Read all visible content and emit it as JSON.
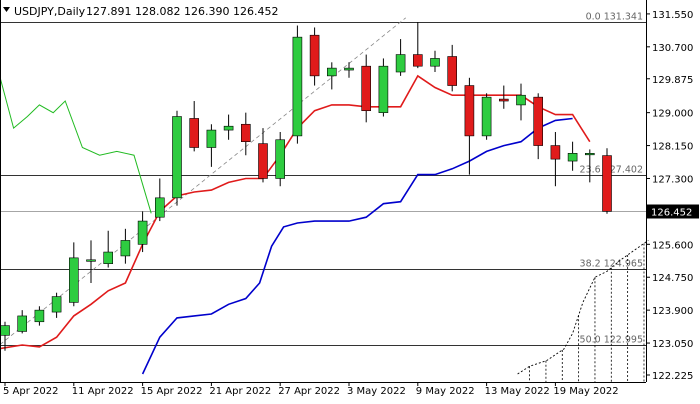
{
  "header": {
    "symbol": "USDJPY,Daily",
    "ohlc": "127.891 128.082 126.390 126.452"
  },
  "chart_data": {
    "type": "candlestick",
    "ylim": [
      122.225,
      131.6
    ],
    "grid": false,
    "colors": {
      "bull": "#2ecc40",
      "bear": "#e01b1b",
      "kijun": "#e01b1b",
      "tenkan": "#0000cc",
      "chikou": "#22bb22",
      "fib": "#333333",
      "cloud": "#000000",
      "price_tag": "#000000"
    },
    "x_ticks": [
      {
        "i": 0,
        "label": "5 Apr 2022"
      },
      {
        "i": 4,
        "label": "11 Apr 2022"
      },
      {
        "i": 8,
        "label": "15 Apr 2022"
      },
      {
        "i": 12,
        "label": "21 Apr 2022"
      },
      {
        "i": 16,
        "label": "27 Apr 2022"
      },
      {
        "i": 20,
        "label": "3 May 2022"
      },
      {
        "i": 24,
        "label": "9 May 2022"
      },
      {
        "i": 28,
        "label": "13 May 2022"
      },
      {
        "i": 32,
        "label": "19 May 2022"
      }
    ],
    "y_ticks": [
      "131.550",
      "130.700",
      "129.875",
      "129.000",
      "128.150",
      "127.300",
      "126.452",
      "125.600",
      "124.750",
      "123.900",
      "123.050",
      "122.225"
    ],
    "y_tick_values": [
      131.55,
      130.7,
      129.875,
      129.0,
      128.15,
      127.3,
      126.452,
      125.6,
      124.75,
      123.9,
      123.05,
      122.225
    ],
    "current_price": {
      "value": 126.452,
      "label": "126.452"
    },
    "fib_levels": [
      {
        "value": 131.341,
        "label": "0.0 131.341"
      },
      {
        "value": 127.402,
        "label": "23.6 127.402"
      },
      {
        "value": 124.965,
        "label": "38.2 124.965"
      },
      {
        "value": 122.995,
        "label": "50.0 122.995"
      }
    ],
    "candles": [
      {
        "o": 123.25,
        "h": 123.6,
        "l": 122.85,
        "c": 123.5
      },
      {
        "o": 123.35,
        "h": 123.9,
        "l": 123.3,
        "c": 123.75
      },
      {
        "o": 123.6,
        "h": 124.0,
        "l": 123.5,
        "c": 123.9
      },
      {
        "o": 123.85,
        "h": 124.35,
        "l": 123.7,
        "c": 124.25
      },
      {
        "o": 124.1,
        "h": 125.65,
        "l": 124.0,
        "c": 125.25
      },
      {
        "o": 125.2,
        "h": 125.7,
        "l": 124.6,
        "c": 125.2
      },
      {
        "o": 125.1,
        "h": 125.95,
        "l": 125.0,
        "c": 125.4
      },
      {
        "o": 125.3,
        "h": 126.0,
        "l": 125.1,
        "c": 125.7
      },
      {
        "o": 125.6,
        "h": 126.45,
        "l": 125.4,
        "c": 126.2
      },
      {
        "o": 126.3,
        "h": 127.3,
        "l": 126.2,
        "c": 126.8
      },
      {
        "o": 126.8,
        "h": 129.05,
        "l": 126.6,
        "c": 128.9
      },
      {
        "o": 128.85,
        "h": 129.3,
        "l": 128.0,
        "c": 128.1
      },
      {
        "o": 128.1,
        "h": 128.7,
        "l": 127.6,
        "c": 128.55
      },
      {
        "o": 128.55,
        "h": 128.95,
        "l": 128.3,
        "c": 128.65
      },
      {
        "o": 128.7,
        "h": 129.0,
        "l": 127.9,
        "c": 128.25
      },
      {
        "o": 128.2,
        "h": 128.6,
        "l": 127.2,
        "c": 127.3
      },
      {
        "o": 127.3,
        "h": 128.5,
        "l": 127.1,
        "c": 128.3
      },
      {
        "o": 128.4,
        "h": 131.25,
        "l": 128.2,
        "c": 130.95
      },
      {
        "o": 131.0,
        "h": 131.2,
        "l": 129.7,
        "c": 129.95
      },
      {
        "o": 129.95,
        "h": 130.3,
        "l": 129.6,
        "c": 130.15
      },
      {
        "o": 130.1,
        "h": 130.3,
        "l": 129.9,
        "c": 130.15
      },
      {
        "o": 130.2,
        "h": 130.5,
        "l": 128.75,
        "c": 129.05
      },
      {
        "o": 129.0,
        "h": 130.4,
        "l": 128.9,
        "c": 130.2
      },
      {
        "o": 130.05,
        "h": 130.9,
        "l": 129.95,
        "c": 130.5
      },
      {
        "o": 130.5,
        "h": 131.341,
        "l": 130.15,
        "c": 130.2
      },
      {
        "o": 130.2,
        "h": 130.6,
        "l": 130.05,
        "c": 130.4
      },
      {
        "o": 130.45,
        "h": 130.75,
        "l": 129.55,
        "c": 129.7
      },
      {
        "o": 129.7,
        "h": 129.9,
        "l": 127.4,
        "c": 128.4
      },
      {
        "o": 128.4,
        "h": 129.5,
        "l": 128.3,
        "c": 129.4
      },
      {
        "o": 129.35,
        "h": 129.7,
        "l": 129.1,
        "c": 129.3
      },
      {
        "o": 129.2,
        "h": 129.75,
        "l": 128.8,
        "c": 129.45
      },
      {
        "o": 129.4,
        "h": 129.5,
        "l": 127.8,
        "c": 128.15
      },
      {
        "o": 128.15,
        "h": 128.5,
        "l": 127.1,
        "c": 127.8
      },
      {
        "o": 127.75,
        "h": 128.25,
        "l": 127.5,
        "c": 127.95
      },
      {
        "o": 127.95,
        "h": 128.05,
        "l": 127.2,
        "c": 127.95
      },
      {
        "o": 127.891,
        "h": 128.082,
        "l": 126.39,
        "c": 126.452
      }
    ],
    "kijun": [
      {
        "i": -0.4,
        "v": 122.9
      },
      {
        "i": 1,
        "v": 123.0
      },
      {
        "i": 2,
        "v": 122.95
      },
      {
        "i": 3,
        "v": 123.2
      },
      {
        "i": 4,
        "v": 123.75
      },
      {
        "i": 5,
        "v": 124.05
      },
      {
        "i": 6,
        "v": 124.4
      },
      {
        "i": 7,
        "v": 124.6
      },
      {
        "i": 8,
        "v": 125.6
      },
      {
        "i": 9,
        "v": 126.45
      },
      {
        "i": 10,
        "v": 126.85
      },
      {
        "i": 11,
        "v": 126.95
      },
      {
        "i": 12,
        "v": 127.0
      },
      {
        "i": 13,
        "v": 127.2
      },
      {
        "i": 14,
        "v": 127.3
      },
      {
        "i": 15,
        "v": 127.3
      },
      {
        "i": 16,
        "v": 127.9
      },
      {
        "i": 17,
        "v": 128.6
      },
      {
        "i": 18,
        "v": 129.05
      },
      {
        "i": 19,
        "v": 129.2
      },
      {
        "i": 20,
        "v": 129.2
      },
      {
        "i": 21,
        "v": 129.15
      },
      {
        "i": 22,
        "v": 129.15
      },
      {
        "i": 23,
        "v": 129.15
      },
      {
        "i": 24,
        "v": 129.95
      },
      {
        "i": 25,
        "v": 129.65
      },
      {
        "i": 26,
        "v": 129.45
      },
      {
        "i": 27,
        "v": 129.45
      },
      {
        "i": 28,
        "v": 129.45
      },
      {
        "i": 29,
        "v": 129.45
      },
      {
        "i": 30,
        "v": 129.45
      },
      {
        "i": 31,
        "v": 129.15
      },
      {
        "i": 32,
        "v": 128.95
      },
      {
        "i": 33,
        "v": 128.95
      },
      {
        "i": 34,
        "v": 128.25
      }
    ],
    "tenkan": [
      {
        "i": 8,
        "v": 122.25
      },
      {
        "i": 9,
        "v": 123.2
      },
      {
        "i": 10,
        "v": 123.7
      },
      {
        "i": 11,
        "v": 123.75
      },
      {
        "i": 12,
        "v": 123.8
      },
      {
        "i": 13,
        "v": 124.05
      },
      {
        "i": 14,
        "v": 124.2
      },
      {
        "i": 14.8,
        "v": 124.6
      },
      {
        "i": 15.5,
        "v": 125.55
      },
      {
        "i": 16.2,
        "v": 126.05
      },
      {
        "i": 17,
        "v": 126.15
      },
      {
        "i": 18,
        "v": 126.2
      },
      {
        "i": 19,
        "v": 126.2
      },
      {
        "i": 20,
        "v": 126.2
      },
      {
        "i": 21,
        "v": 126.3
      },
      {
        "i": 22,
        "v": 126.65
      },
      {
        "i": 23,
        "v": 126.7
      },
      {
        "i": 24,
        "v": 127.4
      },
      {
        "i": 25,
        "v": 127.4
      },
      {
        "i": 26,
        "v": 127.55
      },
      {
        "i": 27,
        "v": 127.75
      },
      {
        "i": 28,
        "v": 128.0
      },
      {
        "i": 29,
        "v": 128.15
      },
      {
        "i": 30,
        "v": 128.25
      },
      {
        "i": 31,
        "v": 128.6
      },
      {
        "i": 32,
        "v": 128.8
      },
      {
        "i": 33,
        "v": 128.85
      }
    ],
    "chikou": [
      {
        "i": -0.4,
        "v": 130.1
      },
      {
        "i": 0.5,
        "v": 128.6
      },
      {
        "i": 1.3,
        "v": 128.9
      },
      {
        "i": 2,
        "v": 129.2
      },
      {
        "i": 2.8,
        "v": 129.0
      },
      {
        "i": 3.5,
        "v": 129.3
      },
      {
        "i": 4.5,
        "v": 128.1
      },
      {
        "i": 5.5,
        "v": 127.9
      },
      {
        "i": 6.5,
        "v": 128.0
      },
      {
        "i": 7.5,
        "v": 127.9
      },
      {
        "i": 8.5,
        "v": 126.4
      }
    ],
    "cloud_span_a": [
      {
        "i": 29.8,
        "v": 122.25
      },
      {
        "i": 30.5,
        "v": 122.45
      },
      {
        "i": 31.5,
        "v": 122.6
      },
      {
        "i": 32.5,
        "v": 122.9
      },
      {
        "i": 33,
        "v": 123.3
      },
      {
        "i": 33.6,
        "v": 124.1
      },
      {
        "i": 34.3,
        "v": 124.75
      },
      {
        "i": 35,
        "v": 124.9
      },
      {
        "i": 35.8,
        "v": 125.2
      },
      {
        "i": 36.6,
        "v": 125.45
      },
      {
        "i": 37.4,
        "v": 125.7
      }
    ],
    "trend_line": {
      "i1": -0.6,
      "v1": 122.9,
      "i2": 23.3,
      "v2": 131.45
    }
  }
}
